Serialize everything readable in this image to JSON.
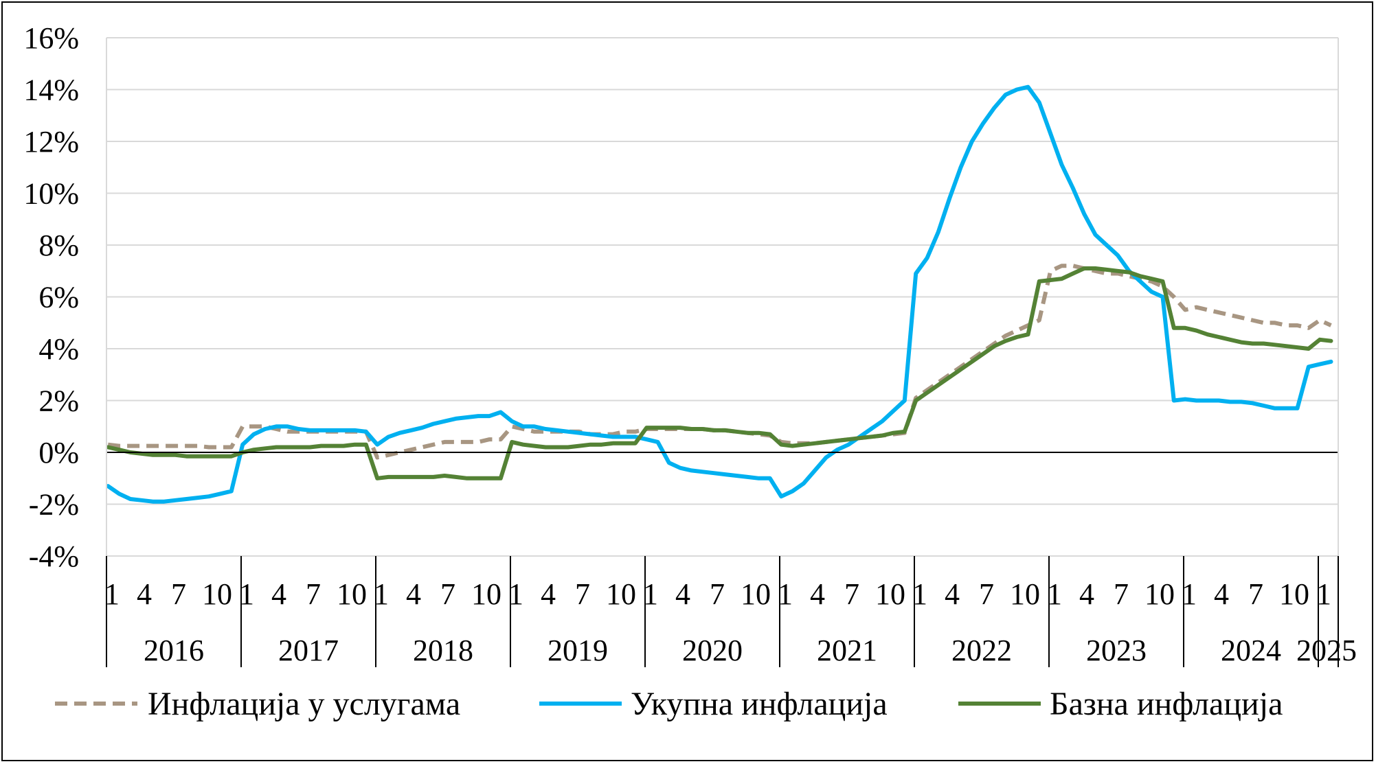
{
  "chart_data": {
    "type": "line",
    "y_ticks": [
      "16%",
      "14%",
      "12%",
      "10%",
      "8%",
      "6%",
      "4%",
      "2%",
      "0%",
      "-2%",
      "-4%"
    ],
    "ylim": [
      -4,
      16
    ],
    "month_tick_labels": [
      "1",
      "4",
      "7",
      "10"
    ],
    "years": [
      "2016",
      "2017",
      "2018",
      "2019",
      "2020",
      "2021",
      "2022",
      "2023",
      "2024",
      "2025"
    ],
    "x_start": "2016-01",
    "x_end": "2025-02",
    "grid": true,
    "legend_position": "bottom",
    "series": [
      {
        "name": "Инфлација у услугама",
        "color": "#a89682",
        "dash": true,
        "values": [
          0.3,
          0.25,
          0.25,
          0.25,
          0.25,
          0.25,
          0.25,
          0.25,
          0.25,
          0.2,
          0.2,
          0.2,
          1.0,
          1.0,
          1.0,
          0.9,
          0.8,
          0.8,
          0.8,
          0.8,
          0.8,
          0.8,
          0.8,
          0.8,
          -0.2,
          -0.1,
          0.0,
          0.1,
          0.2,
          0.3,
          0.4,
          0.4,
          0.4,
          0.4,
          0.5,
          0.5,
          1.0,
          0.9,
          0.8,
          0.8,
          0.8,
          0.8,
          0.8,
          0.7,
          0.7,
          0.7,
          0.8,
          0.8,
          0.9,
          0.9,
          0.9,
          0.9,
          0.9,
          0.9,
          0.85,
          0.85,
          0.8,
          0.75,
          0.7,
          0.65,
          0.4,
          0.35,
          0.35,
          0.35,
          0.4,
          0.45,
          0.5,
          0.55,
          0.6,
          0.65,
          0.7,
          0.75,
          2.1,
          2.4,
          2.7,
          3.0,
          3.3,
          3.6,
          3.9,
          4.2,
          4.5,
          4.7,
          4.9,
          5.1,
          7.0,
          7.2,
          7.2,
          7.1,
          7.0,
          6.9,
          6.9,
          6.8,
          6.7,
          6.6,
          6.4,
          6.0,
          5.5,
          5.6,
          5.5,
          5.4,
          5.3,
          5.2,
          5.1,
          5.0,
          5.0,
          4.9,
          4.9,
          4.8,
          5.1,
          4.9
        ]
      },
      {
        "name": "Укупна инфлација",
        "color": "#00b0f0",
        "dash": false,
        "values": [
          -1.3,
          -1.6,
          -1.8,
          -1.85,
          -1.9,
          -1.9,
          -1.85,
          -1.8,
          -1.75,
          -1.7,
          -1.6,
          -1.5,
          0.3,
          0.7,
          0.9,
          1.0,
          1.0,
          0.9,
          0.85,
          0.85,
          0.85,
          0.85,
          0.85,
          0.8,
          0.3,
          0.6,
          0.75,
          0.85,
          0.95,
          1.1,
          1.2,
          1.3,
          1.35,
          1.4,
          1.4,
          1.55,
          1.2,
          1.0,
          1.0,
          0.9,
          0.85,
          0.8,
          0.75,
          0.7,
          0.65,
          0.6,
          0.6,
          0.6,
          0.5,
          0.4,
          -0.4,
          -0.6,
          -0.7,
          -0.75,
          -0.8,
          -0.85,
          -0.9,
          -0.95,
          -1.0,
          -1.0,
          -1.7,
          -1.5,
          -1.2,
          -0.7,
          -0.2,
          0.1,
          0.3,
          0.6,
          0.9,
          1.2,
          1.6,
          2.0,
          6.9,
          7.5,
          8.5,
          9.8,
          11.0,
          12.0,
          12.7,
          13.3,
          13.8,
          14.0,
          14.1,
          13.5,
          12.3,
          11.1,
          10.2,
          9.2,
          8.4,
          8.0,
          7.6,
          7.0,
          6.6,
          6.2,
          6.0,
          2.0,
          2.05,
          2.0,
          2.0,
          2.0,
          1.95,
          1.95,
          1.9,
          1.8,
          1.7,
          1.7,
          1.7,
          3.3,
          3.4,
          3.5
        ]
      },
      {
        "name": "Базна инфлација",
        "color": "#548235",
        "dash": false,
        "values": [
          0.2,
          0.1,
          0.0,
          -0.05,
          -0.1,
          -0.1,
          -0.1,
          -0.15,
          -0.15,
          -0.15,
          -0.15,
          -0.15,
          0.0,
          0.1,
          0.15,
          0.2,
          0.2,
          0.2,
          0.2,
          0.25,
          0.25,
          0.25,
          0.3,
          0.3,
          -1.0,
          -0.95,
          -0.95,
          -0.95,
          -0.95,
          -0.95,
          -0.9,
          -0.95,
          -1.0,
          -1.0,
          -1.0,
          -1.0,
          0.4,
          0.3,
          0.25,
          0.2,
          0.2,
          0.2,
          0.25,
          0.3,
          0.3,
          0.35,
          0.35,
          0.35,
          0.95,
          0.95,
          0.95,
          0.95,
          0.9,
          0.9,
          0.85,
          0.85,
          0.8,
          0.75,
          0.75,
          0.7,
          0.3,
          0.25,
          0.3,
          0.35,
          0.4,
          0.45,
          0.5,
          0.55,
          0.6,
          0.65,
          0.75,
          0.8,
          2.0,
          2.3,
          2.6,
          2.9,
          3.2,
          3.5,
          3.8,
          4.1,
          4.3,
          4.45,
          4.55,
          6.6,
          6.65,
          6.7,
          6.9,
          7.1,
          7.1,
          7.05,
          7.0,
          6.95,
          6.8,
          6.7,
          6.6,
          4.8,
          4.8,
          4.7,
          4.55,
          4.45,
          4.35,
          4.25,
          4.2,
          4.2,
          4.15,
          4.1,
          4.05,
          4.0,
          4.35,
          4.3
        ]
      }
    ]
  }
}
